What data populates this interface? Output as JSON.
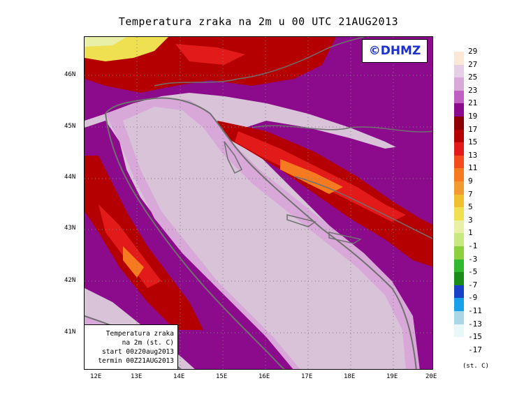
{
  "title": "Temperatura zraka na 2m u 00 UTC 21AUG2013",
  "copyright": "©DHMZ",
  "info_box": {
    "line1": "Temperatura zraka",
    "line2": "na 2m (st. C)",
    "line3": "start 00z20aug2013",
    "line4": "termin 00Z21AUG2013"
  },
  "lat_labels": [
    "46N",
    "45N",
    "44N",
    "43N",
    "42N",
    "41N"
  ],
  "lon_labels": [
    "12E",
    "13E",
    "14E",
    "15E",
    "16E",
    "17E",
    "18E",
    "19E",
    "20E"
  ],
  "legend": {
    "unit": "(st. C)",
    "labels": [
      "29",
      "27",
      "25",
      "23",
      "21",
      "19",
      "17",
      "15",
      "13",
      "11",
      "9",
      "7",
      "5",
      "3",
      "1",
      "-1",
      "-3",
      "-5",
      "-7",
      "-9",
      "-11",
      "-13",
      "-15",
      "-17"
    ],
    "colors": [
      "#fde8d8",
      "#e6cfe6",
      "#d8a8d8",
      "#c060c0",
      "#8c0a8c",
      "#8c0000",
      "#b40000",
      "#e21a1a",
      "#f54a1a",
      "#f57a20",
      "#f29a30",
      "#f0c030",
      "#eee050",
      "#e8f0a8",
      "#c8e880",
      "#8cd040",
      "#30b830",
      "#1a8c1a",
      "#1a40c8",
      "#18a0e8",
      "#a8d8e8",
      "#e8f8f8",
      "#ffffff"
    ]
  },
  "colors": {
    "sea": "#d8c3d8",
    "coast_line": "#707070",
    "copyright_text": "#1c2fcf"
  }
}
